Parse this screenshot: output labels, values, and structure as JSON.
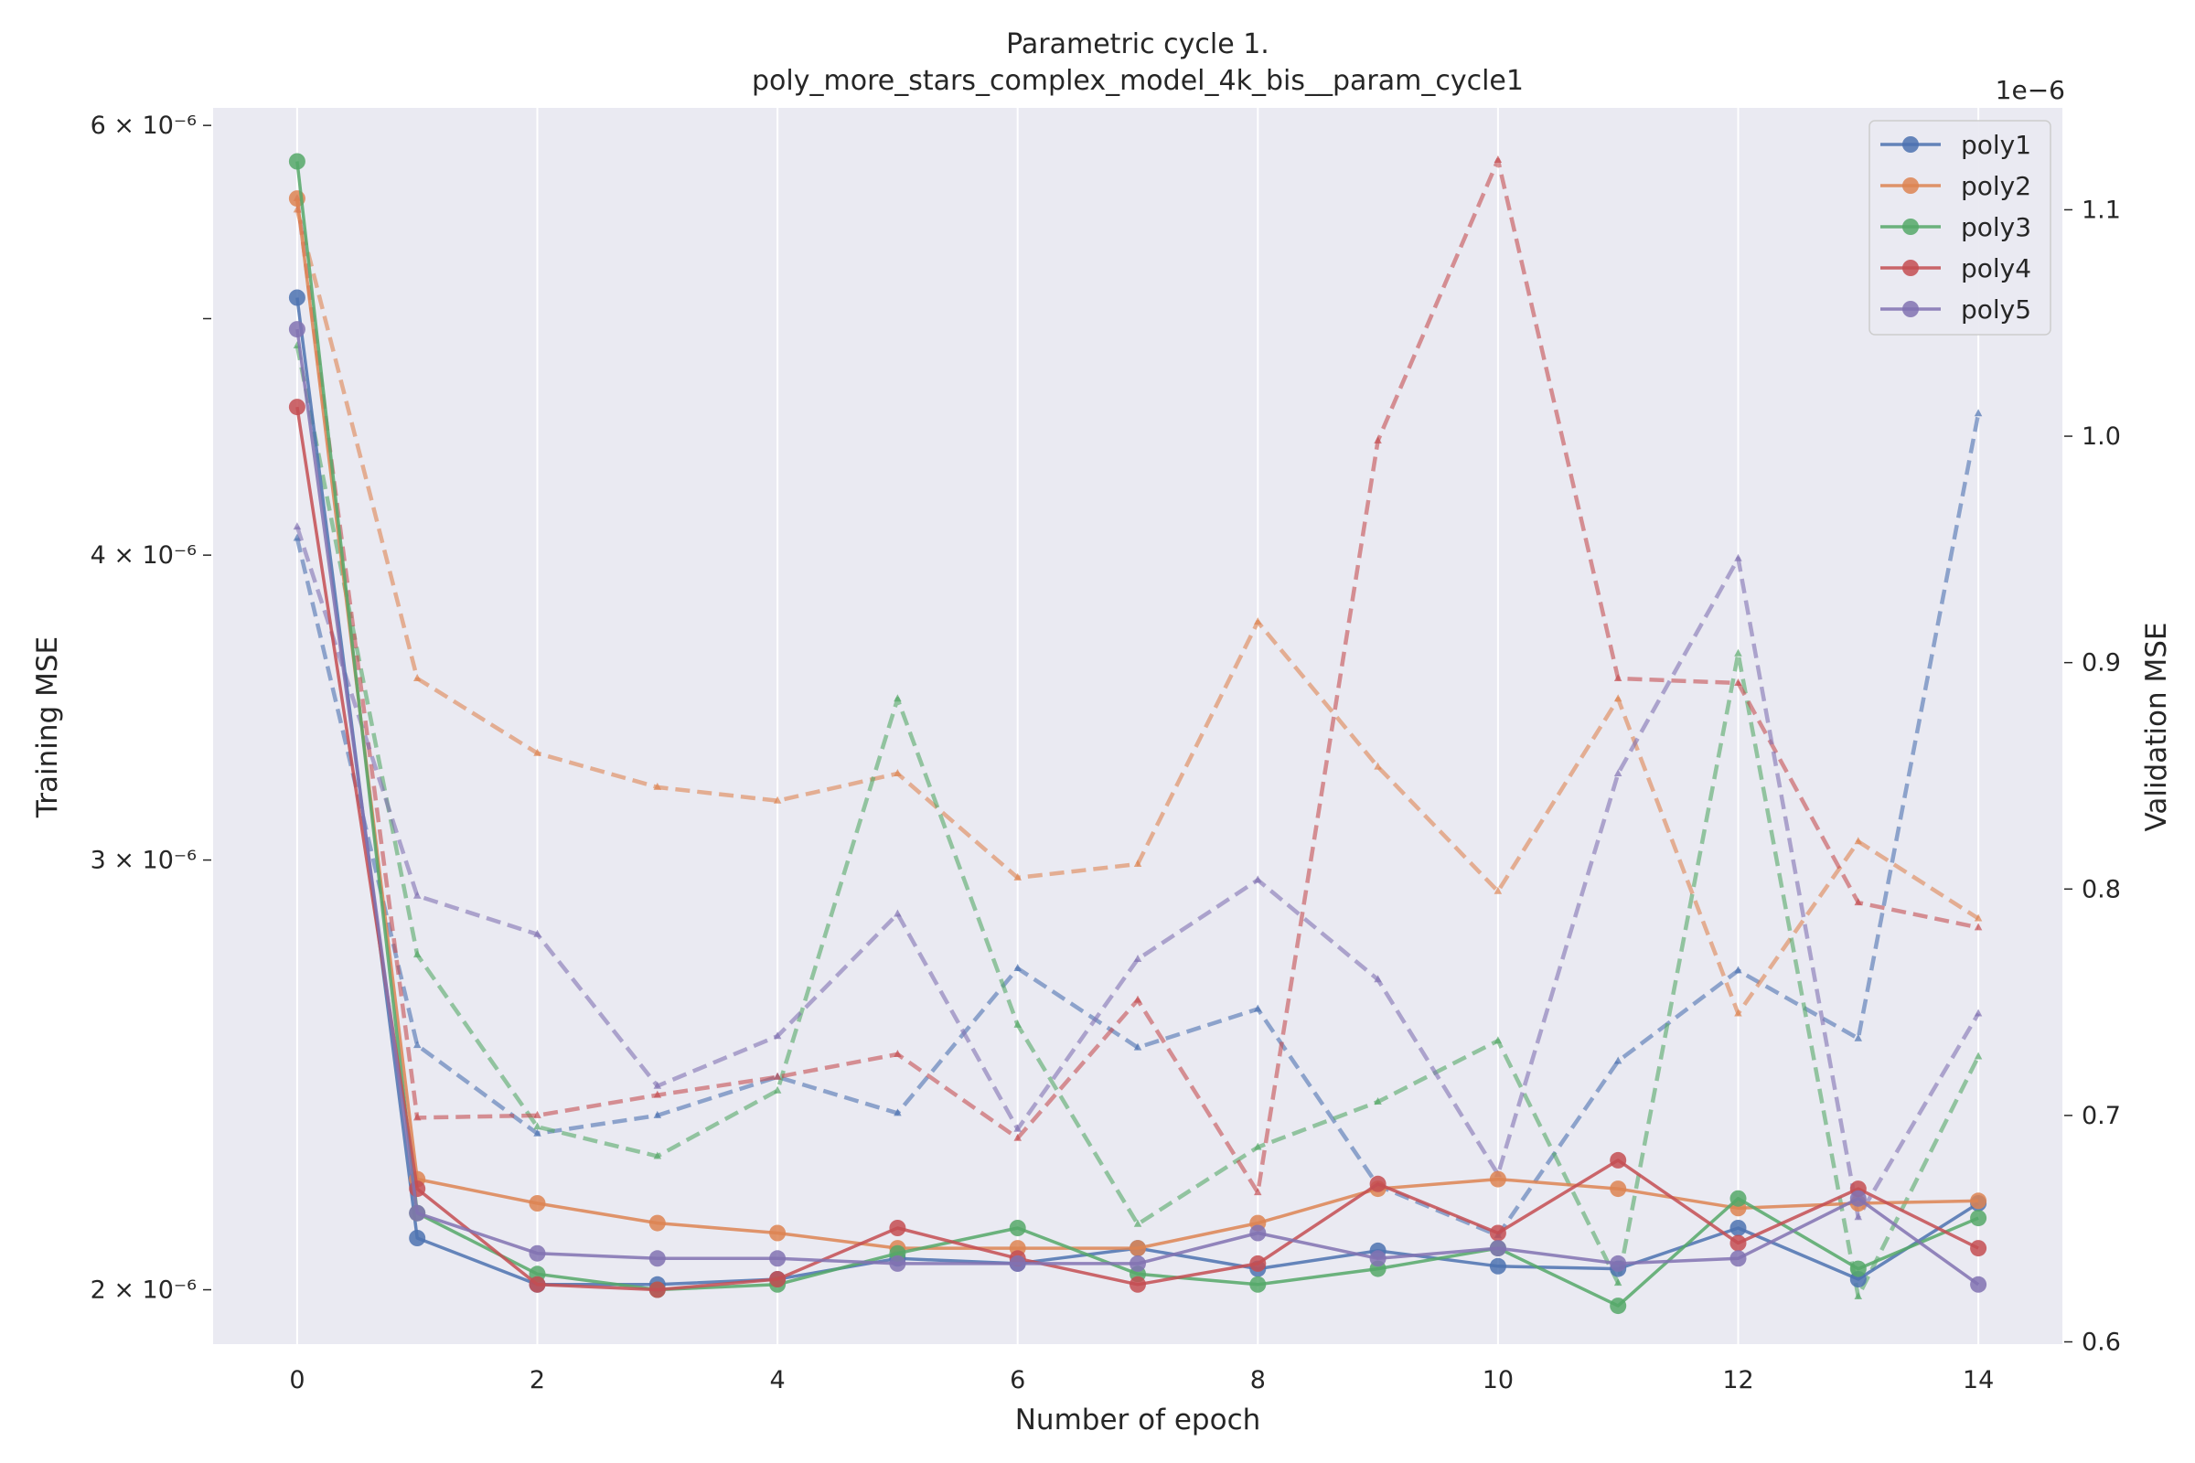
{
  "chart_data": {
    "type": "line",
    "title": "Parametric cycle 1.",
    "subtitle": "poly_more_stars_complex_model_4k_bis__param_cycle1",
    "xlabel": "Number of epoch",
    "ylabel_left": "Training MSE",
    "ylabel_right": "Validation MSE",
    "right_axis_offset_text": "1e−6",
    "y_left_scale": "log",
    "xlim": [
      -0.7,
      14.7
    ],
    "ylim_left": [
      1.9e-06,
      6.1e-06
    ],
    "ylim_right": [
      5.99e-07,
      1.145e-06
    ],
    "x_ticks": [
      0,
      2,
      4,
      6,
      8,
      10,
      12,
      14
    ],
    "y_left_ticks": [
      {
        "value": 2e-06,
        "label": "2 × 10⁻⁶"
      },
      {
        "value": 3e-06,
        "label": "3 × 10⁻⁶"
      },
      {
        "value": 4e-06,
        "label": "4 × 10⁻⁶"
      },
      {
        "value": 5e-06,
        "label": ""
      },
      {
        "value": 6e-06,
        "label": "6 × 10⁻⁶"
      }
    ],
    "y_right_ticks": [
      {
        "value": 6e-07,
        "label": "0.6"
      },
      {
        "value": 7e-07,
        "label": "0.7"
      },
      {
        "value": 8e-07,
        "label": "0.8"
      },
      {
        "value": 9e-07,
        "label": "0.9"
      },
      {
        "value": 1e-06,
        "label": "1.0"
      },
      {
        "value": 1.1e-06,
        "label": "1.1"
      }
    ],
    "grid": "vertical",
    "legend_position": "top-right",
    "x": [
      0,
      1,
      2,
      3,
      4,
      5,
      6,
      7,
      8,
      9,
      10,
      11,
      12,
      13,
      14
    ],
    "series": [
      {
        "name": "poly1",
        "color": "#4c72b0",
        "train": [
          5.1e-06,
          2.1e-06,
          2.01e-06,
          2.01e-06,
          2.02e-06,
          2.06e-06,
          2.05e-06,
          2.08e-06,
          2.04e-06,
          2.075e-06,
          2.045e-06,
          2.04e-06,
          2.12e-06,
          2.02e-06,
          2.17e-06
        ],
        "val": [
          9.55e-07,
          7.31e-07,
          6.92e-07,
          7e-07,
          7.17e-07,
          7.01e-07,
          7.65e-07,
          7.3e-07,
          7.47e-07,
          6.69e-07,
          6.47e-07,
          7.24e-07,
          7.64e-07,
          7.34e-07,
          1.01e-06
        ]
      },
      {
        "name": "poly2",
        "color": "#dd8452",
        "train": [
          5.6e-06,
          2.22e-06,
          2.17e-06,
          2.13e-06,
          2.11e-06,
          2.08e-06,
          2.08e-06,
          2.08e-06,
          2.13e-06,
          2.2e-06,
          2.22e-06,
          2.2e-06,
          2.16e-06,
          2.17e-06,
          2.175e-06
        ],
        "val": [
          1.1e-06,
          8.93e-07,
          8.6e-07,
          8.45e-07,
          8.39e-07,
          8.51e-07,
          8.05e-07,
          8.11e-07,
          9.18e-07,
          8.54e-07,
          7.99e-07,
          8.84e-07,
          7.45e-07,
          8.21e-07,
          7.87e-07
        ]
      },
      {
        "name": "poly3",
        "color": "#55a868",
        "train": [
          5.8e-06,
          2.15e-06,
          2.03e-06,
          2e-06,
          2.01e-06,
          2.07e-06,
          2.12e-06,
          2.03e-06,
          2.01e-06,
          2.04e-06,
          2.08e-06,
          1.97e-06,
          2.18e-06,
          2.04e-06,
          2.14e-06
        ],
        "val": [
          1.04e-06,
          7.71e-07,
          6.95e-07,
          6.82e-07,
          7.11e-07,
          8.84e-07,
          7.4e-07,
          6.52e-07,
          6.86e-07,
          7.06e-07,
          7.33e-07,
          6.26e-07,
          9.04e-07,
          6.2e-07,
          7.26e-07
        ]
      },
      {
        "name": "poly4",
        "color": "#c44e52",
        "train": [
          4.6e-06,
          2.2e-06,
          2.01e-06,
          2e-06,
          2.02e-06,
          2.12e-06,
          2.06e-06,
          2.01e-06,
          2.05e-06,
          2.21e-06,
          2.11e-06,
          2.26e-06,
          2.09e-06,
          2.2e-06,
          2.08e-06
        ],
        "val": [
          1.105e-06,
          6.99e-07,
          7e-07,
          7.09e-07,
          7.17e-07,
          7.27e-07,
          6.9e-07,
          7.51e-07,
          6.66e-07,
          9.98e-07,
          1.122e-06,
          8.93e-07,
          8.91e-07,
          7.94e-07,
          7.83e-07
        ]
      },
      {
        "name": "poly5",
        "color": "#8172b2",
        "train": [
          4.95e-06,
          2.15e-06,
          2.07e-06,
          2.06e-06,
          2.06e-06,
          2.05e-06,
          2.05e-06,
          2.05e-06,
          2.11e-06,
          2.06e-06,
          2.08e-06,
          2.05e-06,
          2.06e-06,
          2.18e-06,
          2.01e-06
        ],
        "val": [
          9.6e-07,
          7.97e-07,
          7.8e-07,
          7.13e-07,
          7.35e-07,
          7.89e-07,
          6.94e-07,
          7.69e-07,
          8.04e-07,
          7.6e-07,
          6.74e-07,
          8.51e-07,
          9.46e-07,
          6.55e-07,
          7.45e-07
        ]
      }
    ]
  }
}
